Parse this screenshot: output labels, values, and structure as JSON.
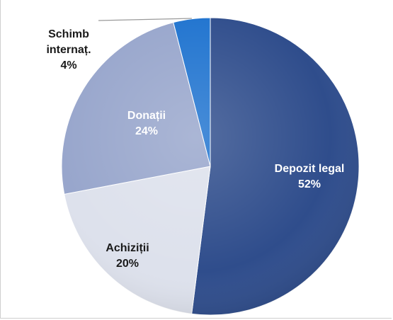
{
  "chart_data": {
    "type": "pie",
    "slices": [
      {
        "label_lines": [
          "Depozit legal"
        ],
        "value": 52,
        "value_label": "52%",
        "color": "#2f4d8c",
        "label_color": "#ffffff"
      },
      {
        "label_lines": [
          "Achiziții"
        ],
        "value": 20,
        "value_label": "20%",
        "color": "#dde1ec",
        "label_color": "#1a1a1a"
      },
      {
        "label_lines": [
          "Donații"
        ],
        "value": 24,
        "value_label": "24%",
        "color": "#98a6cc",
        "label_color": "#ffffff"
      },
      {
        "label_lines": [
          "Schimb",
          "internaț."
        ],
        "value": 4,
        "value_label": "4%",
        "color": "#1f73cf",
        "label_color": "#1a1a1a"
      }
    ],
    "start_angle_deg": 0,
    "direction": "clockwise",
    "legend": "none"
  }
}
